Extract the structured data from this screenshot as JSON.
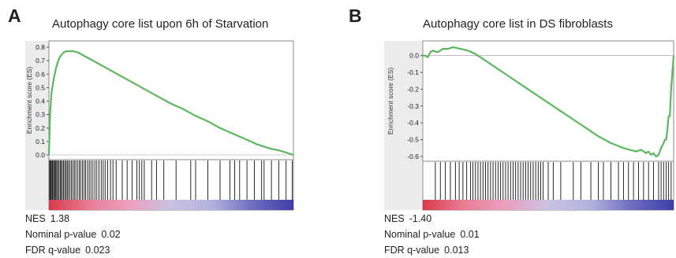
{
  "chart_data": [
    {
      "type": "line",
      "panel_label": "A",
      "title": "Autophagy core list upon 6h of Starvation",
      "ylabel": "Enrichment score (ES)",
      "ylim": [
        0.0,
        0.8
      ],
      "yticks": [
        "0.0",
        "0.1",
        "0.2",
        "0.3",
        "0.4",
        "0.5",
        "0.6",
        "0.7",
        "0.8"
      ],
      "grid": false,
      "series": [
        {
          "line_color": "#5cb85c",
          "x": [
            0.0,
            0.005,
            0.01,
            0.02,
            0.03,
            0.04,
            0.05,
            0.06,
            0.07,
            0.08,
            0.1,
            0.12,
            0.15,
            0.2,
            0.25,
            0.3,
            0.35,
            0.4,
            0.45,
            0.5,
            0.55,
            0.6,
            0.65,
            0.7,
            0.75,
            0.8,
            0.85,
            0.9,
            0.95,
            1.0
          ],
          "values": [
            0.0,
            0.3,
            0.45,
            0.57,
            0.65,
            0.71,
            0.74,
            0.76,
            0.77,
            0.77,
            0.77,
            0.76,
            0.73,
            0.68,
            0.63,
            0.58,
            0.53,
            0.48,
            0.43,
            0.38,
            0.34,
            0.29,
            0.25,
            0.2,
            0.16,
            0.12,
            0.08,
            0.05,
            0.03,
            0.0
          ]
        }
      ],
      "hit_positions": [
        0.003,
        0.006,
        0.009,
        0.013,
        0.016,
        0.02,
        0.024,
        0.028,
        0.032,
        0.036,
        0.041,
        0.046,
        0.05,
        0.055,
        0.06,
        0.065,
        0.07,
        0.075,
        0.08,
        0.086,
        0.092,
        0.098,
        0.104,
        0.11,
        0.117,
        0.124,
        0.13,
        0.137,
        0.144,
        0.15,
        0.158,
        0.165,
        0.172,
        0.18,
        0.188,
        0.196,
        0.205,
        0.214,
        0.222,
        0.23,
        0.24,
        0.252,
        0.262,
        0.275,
        0.3,
        0.32,
        0.34,
        0.36,
        0.37,
        0.38,
        0.39,
        0.42,
        0.44,
        0.47,
        0.52,
        0.58,
        0.6,
        0.65,
        0.7,
        0.74,
        0.76,
        0.78,
        0.81,
        0.84,
        0.87,
        0.88,
        0.91,
        0.94,
        0.97,
        0.995
      ],
      "rank_colors": [
        "#d93a4a",
        "#e87e95",
        "#ec9fc0",
        "#c9c3e2",
        "#b2b2de",
        "#6d6dc0",
        "#3e3ea8"
      ],
      "stats": [
        {
          "label": "NES",
          "value": "1.38"
        },
        {
          "label": "Nominal p-value",
          "value": "0.02"
        },
        {
          "label": "FDR q-value",
          "value": "0.023"
        }
      ]
    },
    {
      "type": "line",
      "panel_label": "B",
      "title": "Autophagy core list in DS fibroblasts",
      "ylabel": "Enrichment score (ES)",
      "ylim": [
        -0.6,
        0.05
      ],
      "yticks": [
        "0.0",
        "-0.1",
        "-0.2",
        "-0.3",
        "-0.4",
        "-0.5",
        "-0.6"
      ],
      "grid": false,
      "series": [
        {
          "line_color": "#5cb85c",
          "x": [
            0.0,
            0.01,
            0.02,
            0.03,
            0.04,
            0.06,
            0.08,
            0.1,
            0.12,
            0.15,
            0.18,
            0.21,
            0.25,
            0.3,
            0.35,
            0.4,
            0.45,
            0.5,
            0.55,
            0.6,
            0.65,
            0.7,
            0.75,
            0.8,
            0.85,
            0.87,
            0.89,
            0.9,
            0.91,
            0.92,
            0.93,
            0.94,
            0.95,
            0.96,
            0.965,
            0.97,
            0.975,
            0.98,
            0.985,
            0.99,
            1.0
          ],
          "values": [
            0.0,
            0.0,
            -0.01,
            0.02,
            0.03,
            0.02,
            0.04,
            0.04,
            0.05,
            0.04,
            0.03,
            0.01,
            -0.03,
            -0.08,
            -0.13,
            -0.18,
            -0.23,
            -0.28,
            -0.33,
            -0.38,
            -0.43,
            -0.48,
            -0.52,
            -0.55,
            -0.57,
            -0.56,
            -0.58,
            -0.57,
            -0.59,
            -0.58,
            -0.6,
            -0.59,
            -0.55,
            -0.52,
            -0.5,
            -0.5,
            -0.44,
            -0.36,
            -0.36,
            -0.2,
            0.0
          ]
        }
      ],
      "hit_positions": [
        0.05,
        0.07,
        0.09,
        0.11,
        0.13,
        0.145,
        0.16,
        0.175,
        0.19,
        0.2,
        0.21,
        0.22,
        0.23,
        0.24,
        0.25,
        0.26,
        0.27,
        0.28,
        0.29,
        0.3,
        0.31,
        0.32,
        0.33,
        0.34,
        0.35,
        0.36,
        0.37,
        0.38,
        0.39,
        0.4,
        0.41,
        0.42,
        0.43,
        0.44,
        0.45,
        0.46,
        0.47,
        0.48,
        0.5,
        0.52,
        0.55,
        0.6,
        0.63,
        0.67,
        0.7,
        0.72,
        0.75,
        0.78,
        0.8,
        0.82,
        0.84,
        0.86,
        0.88,
        0.9,
        0.92,
        0.94,
        0.95,
        0.96,
        0.97,
        0.98,
        0.99
      ],
      "rank_colors": [
        "#d93a4a",
        "#e87e95",
        "#ec9fc0",
        "#c9c3e2",
        "#b2b2de",
        "#6d6dc0",
        "#3e3ea8"
      ],
      "stats": [
        {
          "label": "NES",
          "value": "-1.40"
        },
        {
          "label": "Nominal p-value",
          "value": "0.01"
        },
        {
          "label": "FDR q-value",
          "value": "0.013"
        }
      ]
    }
  ]
}
